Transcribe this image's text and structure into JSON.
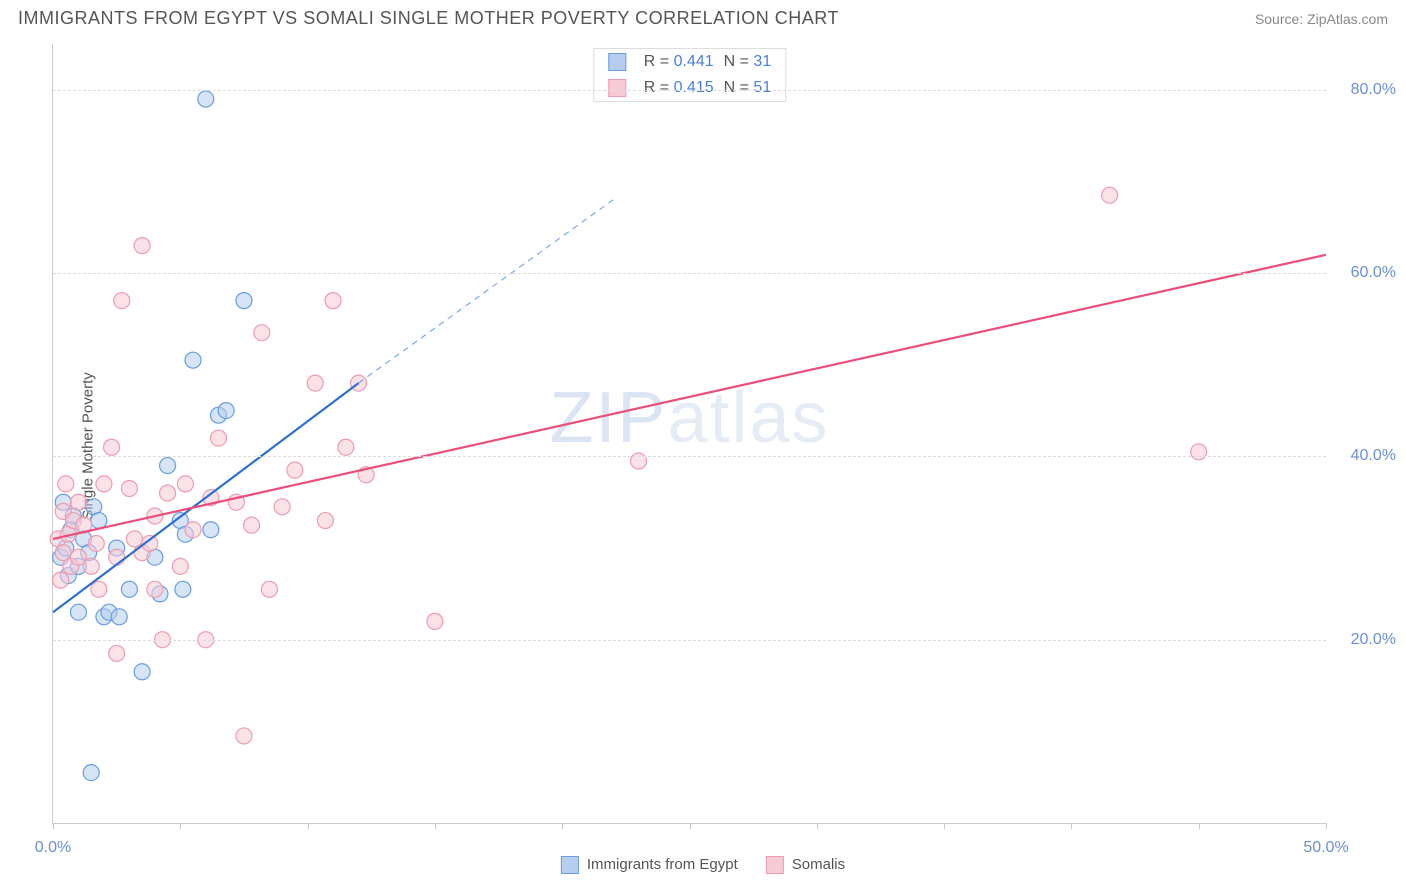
{
  "header": {
    "title": "IMMIGRANTS FROM EGYPT VS SOMALI SINGLE MOTHER POVERTY CORRELATION CHART",
    "source_prefix": "Source: ",
    "source": "ZipAtlas.com"
  },
  "watermark": {
    "zip": "ZIP",
    "atlas": "atlas"
  },
  "ylabel": "Single Mother Poverty",
  "chart": {
    "type": "scatter",
    "xlim": [
      0,
      50
    ],
    "ylim": [
      0,
      85
    ],
    "x_ticks": [
      0,
      5,
      10,
      15,
      20,
      25,
      30,
      35,
      40,
      45,
      50
    ],
    "x_tick_labels": {
      "0": "0.0%",
      "50": "50.0%"
    },
    "y_gridlines": [
      20,
      40,
      60,
      80
    ],
    "y_tick_labels": {
      "20": "20.0%",
      "40": "40.0%",
      "60": "60.0%",
      "80": "80.0%"
    },
    "background_color": "#ffffff",
    "grid_color": "#dddddd",
    "axis_color": "#cccccc",
    "tick_label_color": "#6a8fd8",
    "marker_radius": 8,
    "marker_stroke_width": 1.2,
    "series": [
      {
        "id": "egypt",
        "label": "Immigrants from Egypt",
        "fill": "#b5ceef",
        "stroke": "#6a9de0",
        "line_color": "#2d6fd6",
        "R": "0.441",
        "N": "31",
        "trend": {
          "x1": 0,
          "y1": 23,
          "x2": 12,
          "y2": 48,
          "dash_to_x": 22,
          "dash_to_y": 68
        },
        "points": [
          [
            0.3,
            29
          ],
          [
            0.4,
            35
          ],
          [
            0.5,
            30
          ],
          [
            0.6,
            27
          ],
          [
            0.7,
            32
          ],
          [
            0.8,
            33.5
          ],
          [
            1.0,
            23
          ],
          [
            1.0,
            28
          ],
          [
            1.2,
            31
          ],
          [
            1.4,
            29.5
          ],
          [
            1.5,
            5.5
          ],
          [
            1.6,
            34.5
          ],
          [
            1.8,
            33
          ],
          [
            2.0,
            22.5
          ],
          [
            2.2,
            23
          ],
          [
            2.5,
            30
          ],
          [
            2.6,
            22.5
          ],
          [
            3.0,
            25.5
          ],
          [
            3.5,
            16.5
          ],
          [
            4.0,
            29
          ],
          [
            4.2,
            25
          ],
          [
            4.5,
            39
          ],
          [
            5.0,
            33
          ],
          [
            5.1,
            25.5
          ],
          [
            5.2,
            31.5
          ],
          [
            5.5,
            50.5
          ],
          [
            6.0,
            79
          ],
          [
            6.2,
            32
          ],
          [
            6.5,
            44.5
          ],
          [
            6.8,
            45
          ],
          [
            7.5,
            57
          ]
        ]
      },
      {
        "id": "somali",
        "label": "Somalis",
        "fill": "#f7cbd5",
        "stroke": "#ed9cb0",
        "line_color": "#e94f7a",
        "R": "0.415",
        "N": "51",
        "trend": {
          "x1": 0,
          "y1": 31,
          "x2": 50,
          "y2": 62
        },
        "points": [
          [
            0.2,
            31
          ],
          [
            0.3,
            26.5
          ],
          [
            0.4,
            34
          ],
          [
            0.4,
            29.5
          ],
          [
            0.5,
            37
          ],
          [
            0.6,
            31.5
          ],
          [
            0.7,
            28
          ],
          [
            0.8,
            33
          ],
          [
            1.0,
            29
          ],
          [
            1.0,
            35
          ],
          [
            1.2,
            32.5
          ],
          [
            1.5,
            28
          ],
          [
            1.7,
            30.5
          ],
          [
            1.8,
            25.5
          ],
          [
            2.0,
            37
          ],
          [
            2.3,
            41
          ],
          [
            2.5,
            29
          ],
          [
            2.5,
            18.5
          ],
          [
            2.7,
            57
          ],
          [
            3.0,
            36.5
          ],
          [
            3.2,
            31
          ],
          [
            3.5,
            29.5
          ],
          [
            3.5,
            63
          ],
          [
            3.8,
            30.5
          ],
          [
            4.0,
            25.5
          ],
          [
            4.0,
            33.5
          ],
          [
            4.3,
            20
          ],
          [
            4.5,
            36
          ],
          [
            5.0,
            28
          ],
          [
            5.2,
            37
          ],
          [
            5.5,
            32
          ],
          [
            6.0,
            20
          ],
          [
            6.2,
            35.5
          ],
          [
            6.5,
            42
          ],
          [
            7.2,
            35
          ],
          [
            7.5,
            9.5
          ],
          [
            7.8,
            32.5
          ],
          [
            8.2,
            53.5
          ],
          [
            8.5,
            25.5
          ],
          [
            9.0,
            34.5
          ],
          [
            9.5,
            38.5
          ],
          [
            10.3,
            48
          ],
          [
            10.7,
            33
          ],
          [
            11.0,
            57
          ],
          [
            11.5,
            41
          ],
          [
            12.0,
            48
          ],
          [
            12.3,
            38
          ],
          [
            15.0,
            22
          ],
          [
            23.0,
            39.5
          ],
          [
            41.5,
            68.5
          ],
          [
            45.0,
            40.5
          ]
        ]
      }
    ]
  },
  "bottom_legend": [
    {
      "label_ref": "chart.series.0.label",
      "fill_ref": "chart.series.0.fill",
      "stroke_ref": "chart.series.0.stroke"
    },
    {
      "label_ref": "chart.series.1.label",
      "fill_ref": "chart.series.1.fill",
      "stroke_ref": "chart.series.1.stroke"
    }
  ]
}
